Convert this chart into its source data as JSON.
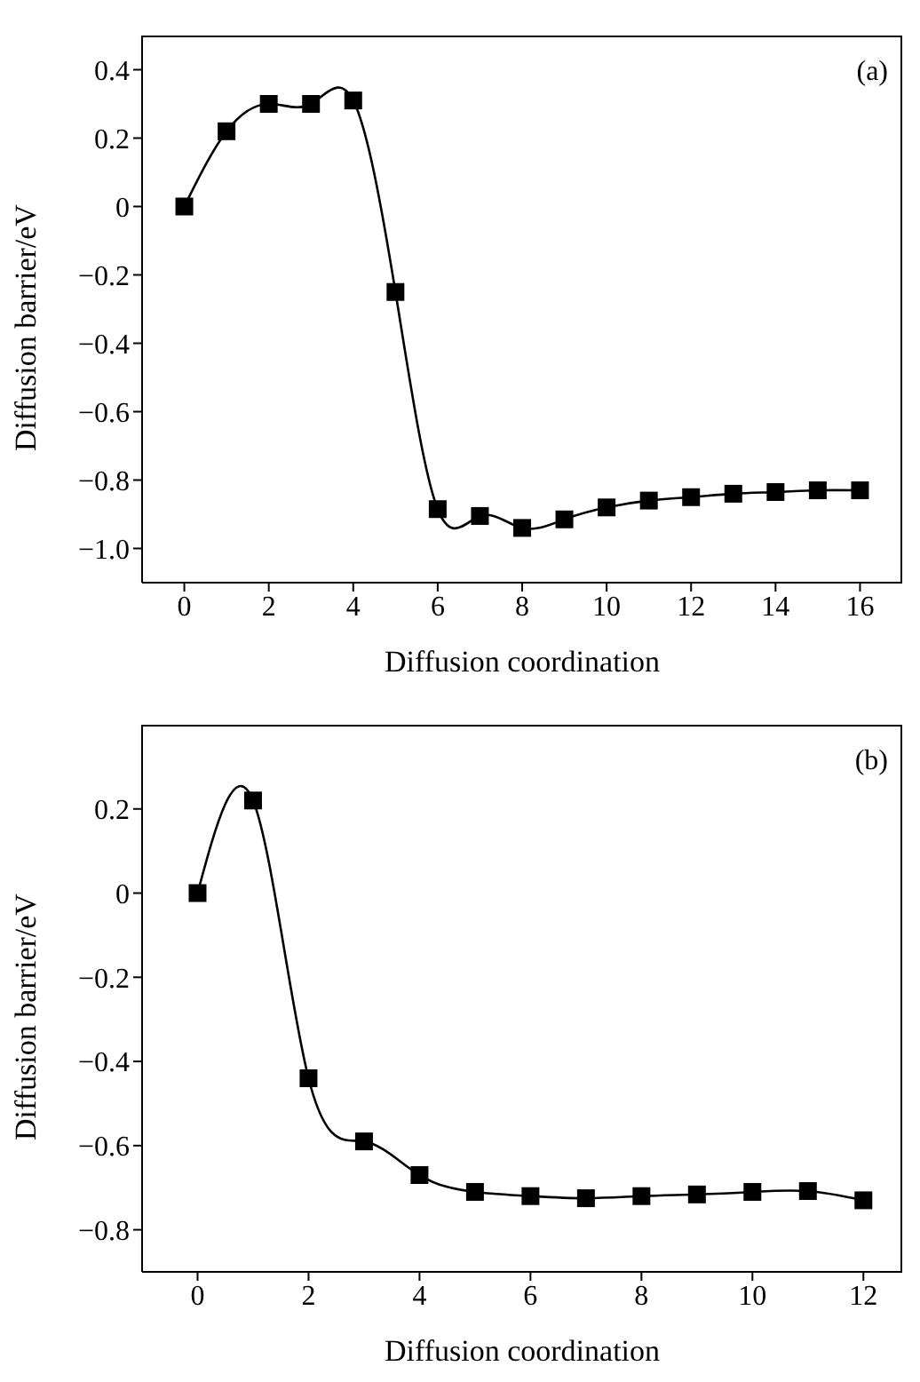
{
  "chart_data": [
    {
      "type": "line",
      "xlabel": "Diffusion coordination",
      "ylabel": "Diffusion barrier/eV",
      "annotations": [
        "(a)"
      ],
      "x": [
        0,
        1,
        2,
        3,
        4,
        5,
        6,
        7,
        8,
        9,
        10,
        11,
        12,
        13,
        14,
        15,
        16
      ],
      "series": [
        {
          "color": "#000000",
          "values": [
            0,
            0.22,
            0.3,
            0.3,
            0.31,
            -0.25,
            -0.885,
            -0.905,
            -0.94,
            -0.915,
            -0.88,
            -0.86,
            -0.85,
            -0.84,
            -0.835,
            -0.83,
            -0.83
          ]
        }
      ],
      "xlim": [
        -1,
        17
      ],
      "xticks": [
        0,
        2,
        4,
        6,
        8,
        10,
        12,
        14,
        16
      ],
      "ylim": [
        -1.1,
        0.5
      ],
      "yticks": [
        {
          "value": -1.0,
          "label": "−1.0"
        },
        {
          "value": -0.8,
          "label": "−0.8"
        },
        {
          "value": -0.6,
          "label": "−0.6"
        },
        {
          "value": -0.4,
          "label": "−0.4"
        },
        {
          "value": -0.2,
          "label": "−0.2"
        },
        0,
        0.2,
        0.4
      ],
      "marker": "square",
      "line_style": "solid",
      "grid": false,
      "legend": false
    },
    {
      "type": "line",
      "xlabel": "Diffusion coordination",
      "ylabel": "Diffusion barrier/eV",
      "annotations": [
        "(b)"
      ],
      "x": [
        0,
        1,
        2,
        3,
        4,
        5,
        6,
        7,
        8,
        9,
        10,
        11,
        12
      ],
      "series": [
        {
          "color": "#000000",
          "values": [
            0,
            0.22,
            -0.44,
            -0.59,
            -0.67,
            -0.71,
            -0.72,
            -0.725,
            -0.72,
            -0.716,
            -0.71,
            -0.708,
            -0.73
          ]
        }
      ],
      "xlim": [
        -1,
        12.7
      ],
      "xticks": [
        0,
        2,
        4,
        6,
        8,
        10,
        12
      ],
      "ylim": [
        -0.9,
        0.4
      ],
      "yticks": [
        {
          "value": -0.8,
          "label": "−0.8"
        },
        {
          "value": -0.6,
          "label": "−0.6"
        },
        {
          "value": -0.4,
          "label": "−0.4"
        },
        {
          "value": -0.2,
          "label": "−0.2"
        },
        0,
        0.2
      ],
      "marker": "square",
      "line_style": "solid",
      "grid": false,
      "legend": false
    }
  ]
}
